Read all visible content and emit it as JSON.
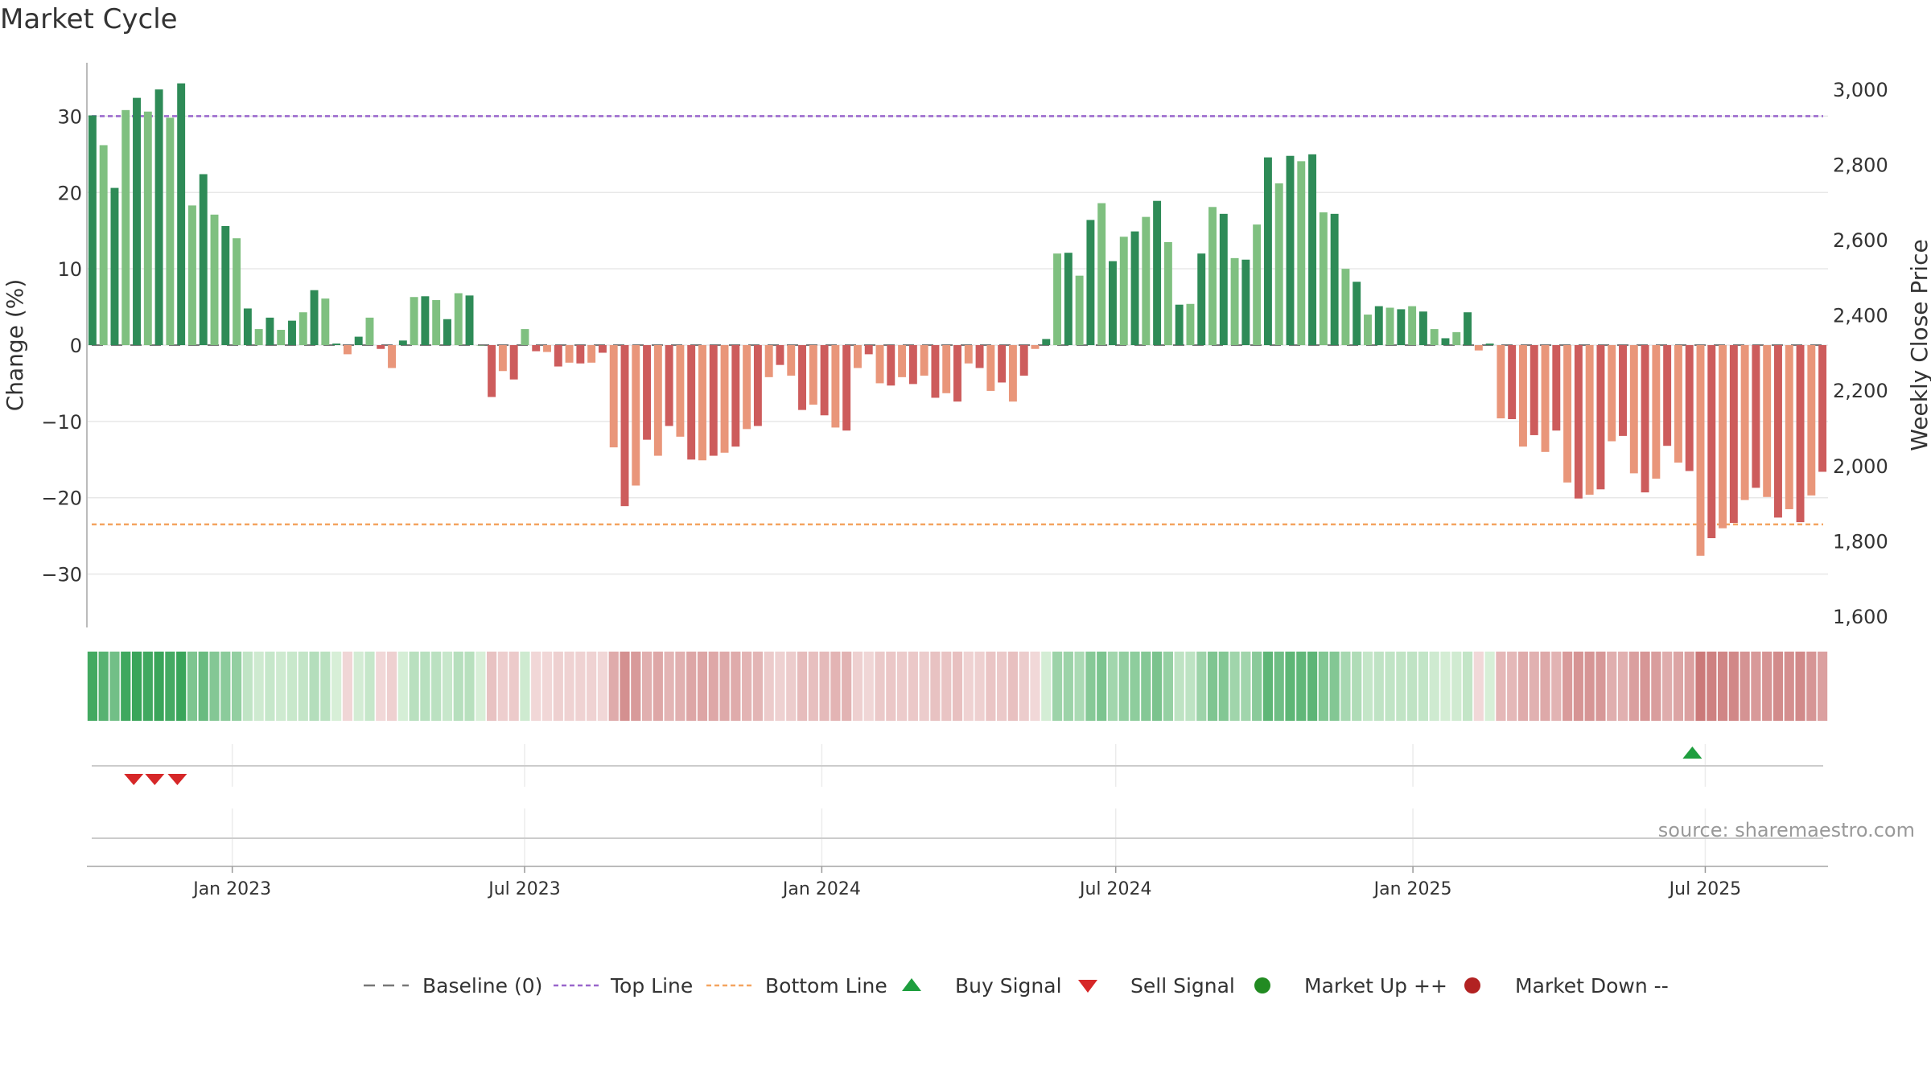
{
  "title": "Market Cycle",
  "source": "source: sharemaestro.com",
  "colors": {
    "up_strong": "#2e8b57",
    "up_light": "#7fc080",
    "down_strong": "#cd5c5c",
    "down_light": "#e9967a",
    "top_line": "#9966cc",
    "bottom_line": "#f4a460",
    "buy": "#1e9e3e",
    "sell": "#d62728",
    "market_up": "#228b22",
    "market_down": "#b22222"
  },
  "chart_data": {
    "type": "bar",
    "title": "Market Cycle",
    "ylabel": "Change (%)",
    "y2label": "Weekly Close Price",
    "ylim": [
      -37,
      37
    ],
    "y_ticks": [
      30,
      20,
      10,
      0,
      -10,
      -20,
      -30
    ],
    "y_tick_labels": [
      "30",
      "20",
      "10",
      "0",
      "−10",
      "−20",
      "−30"
    ],
    "y2lim": [
      1570,
      3070
    ],
    "y2_ticks": [
      3000,
      2800,
      2600,
      2400,
      2200,
      2000,
      1800,
      1600
    ],
    "y2_tick_labels": [
      "3,000",
      "2,800",
      "2,600",
      "2,400",
      "2,200",
      "2,000",
      "1,800",
      "1,600"
    ],
    "x_start": "2022-10-03",
    "x_end": "2025-09-15",
    "x_ticks": [
      "2023-01-01",
      "2023-07-01",
      "2024-01-01",
      "2024-07-01",
      "2025-01-01",
      "2025-07-01"
    ],
    "x_tick_labels": [
      "Jan 2023",
      "Jul 2023",
      "Jan 2024",
      "Jul 2024",
      "Jan 2025",
      "Jul 2025"
    ],
    "top_line": 30,
    "bottom_line": -23.5,
    "values": [
      30.1,
      26.2,
      20.6,
      30.8,
      32.4,
      30.6,
      33.5,
      29.8,
      34.3,
      18.3,
      22.4,
      17.1,
      15.6,
      14.0,
      4.8,
      2.1,
      3.6,
      2.0,
      3.2,
      4.3,
      7.2,
      6.1,
      0.2,
      -1.2,
      1.1,
      3.6,
      -0.5,
      -3.0,
      0.6,
      6.3,
      6.4,
      5.9,
      3.4,
      6.8,
      6.5,
      0.0,
      -6.8,
      -3.4,
      -4.5,
      2.1,
      -0.8,
      -0.9,
      -2.8,
      -2.3,
      -2.4,
      -2.3,
      -1.0,
      -13.4,
      -21.1,
      -18.4,
      -12.4,
      -14.5,
      -10.6,
      -12.0,
      -15.0,
      -15.1,
      -14.5,
      -14.1,
      -13.3,
      -11.0,
      -10.6,
      -4.2,
      -2.6,
      -4.0,
      -8.5,
      -7.8,
      -9.2,
      -10.8,
      -11.2,
      -3.0,
      -1.2,
      -5.0,
      -5.3,
      -4.2,
      -5.1,
      -4.0,
      -6.9,
      -6.3,
      -7.4,
      -2.4,
      -3.0,
      -6.0,
      -4.9,
      -7.4,
      -4.0,
      -0.5,
      0.8,
      12.0,
      12.1,
      9.1,
      16.4,
      18.6,
      11.0,
      14.2,
      14.9,
      16.8,
      18.9,
      13.5,
      5.3,
      5.4,
      12.0,
      18.1,
      17.2,
      11.4,
      11.2,
      15.8,
      24.6,
      21.2,
      24.8,
      24.1,
      25.0,
      17.4,
      17.2,
      10.0,
      8.3,
      4.0,
      5.1,
      4.9,
      4.7,
      5.1,
      4.4,
      2.1,
      0.9,
      1.7,
      4.3,
      -0.7,
      0.2,
      -9.6,
      -9.7,
      -13.3,
      -11.8,
      -14.0,
      -11.2,
      -18.0,
      -20.1,
      -19.6,
      -18.9,
      -12.6,
      -11.9,
      -16.8,
      -19.3,
      -17.5,
      -13.2,
      -15.4,
      -16.5,
      -27.6,
      -25.3,
      -24.0,
      -23.3,
      -20.3,
      -18.7,
      -19.9,
      -22.6,
      -21.5,
      -23.2,
      -19.7,
      -16.6
    ],
    "heat_values": [
      30.1,
      26.2,
      20.6,
      30.8,
      32.4,
      30.6,
      33.5,
      29.8,
      34.3,
      18.3,
      22.4,
      17.1,
      15.6,
      14.0,
      4.8,
      2.1,
      3.6,
      2.0,
      3.2,
      4.3,
      7.2,
      6.1,
      0.2,
      -1.2,
      1.1,
      3.6,
      -0.5,
      -3.0,
      0.6,
      6.3,
      6.4,
      5.9,
      3.4,
      6.8,
      6.5,
      0.0,
      -6.8,
      -3.4,
      -4.5,
      2.1,
      -0.8,
      -0.9,
      -2.8,
      -2.3,
      -2.4,
      -2.3,
      -1.0,
      -13.4,
      -21.1,
      -18.4,
      -12.4,
      -14.5,
      -10.6,
      -12.0,
      -15.0,
      -15.1,
      -14.5,
      -14.1,
      -13.3,
      -11.0,
      -10.6,
      -4.2,
      -2.6,
      -4.0,
      -8.5,
      -7.8,
      -9.2,
      -10.8,
      -11.2,
      -3.0,
      -1.2,
      -5.0,
      -5.3,
      -4.2,
      -5.1,
      -4.0,
      -6.9,
      -6.3,
      -7.4,
      -2.4,
      -3.0,
      -6.0,
      -4.9,
      -7.4,
      -4.0,
      -0.5,
      0.8,
      12.0,
      12.1,
      9.1,
      16.4,
      18.6,
      11.0,
      14.2,
      14.9,
      16.8,
      18.9,
      13.5,
      5.3,
      5.4,
      12.0,
      18.1,
      17.2,
      11.4,
      11.2,
      15.8,
      24.6,
      21.2,
      24.8,
      24.1,
      25.0,
      17.4,
      17.2,
      10.0,
      8.3,
      4.0,
      5.1,
      4.9,
      4.7,
      5.1,
      4.4,
      2.1,
      0.9,
      1.7,
      4.3,
      -0.7,
      0.2,
      -9.6,
      -9.7,
      -13.3,
      -11.8,
      -14.0,
      -11.2,
      -18.0,
      -20.1,
      -19.6,
      -18.9,
      -12.6,
      -11.9,
      -16.8,
      -19.3,
      -17.5,
      -13.2,
      -15.4,
      -16.5,
      -27.6,
      -25.3,
      -24.0,
      -23.3,
      -20.3,
      -18.7,
      -19.9,
      -22.6,
      -21.5,
      -23.2,
      -19.7,
      -16.6
    ],
    "sell_signals": [
      "2022-11-01",
      "2022-11-14",
      "2022-11-28"
    ],
    "buy_signals": [
      "2025-06-23"
    ],
    "legend": [
      "Baseline (0)",
      "Top Line",
      "Bottom Line",
      "Buy Signal",
      "Sell Signal",
      "Market Up ++",
      "Market Down --"
    ],
    "legend_position": "bottom"
  }
}
